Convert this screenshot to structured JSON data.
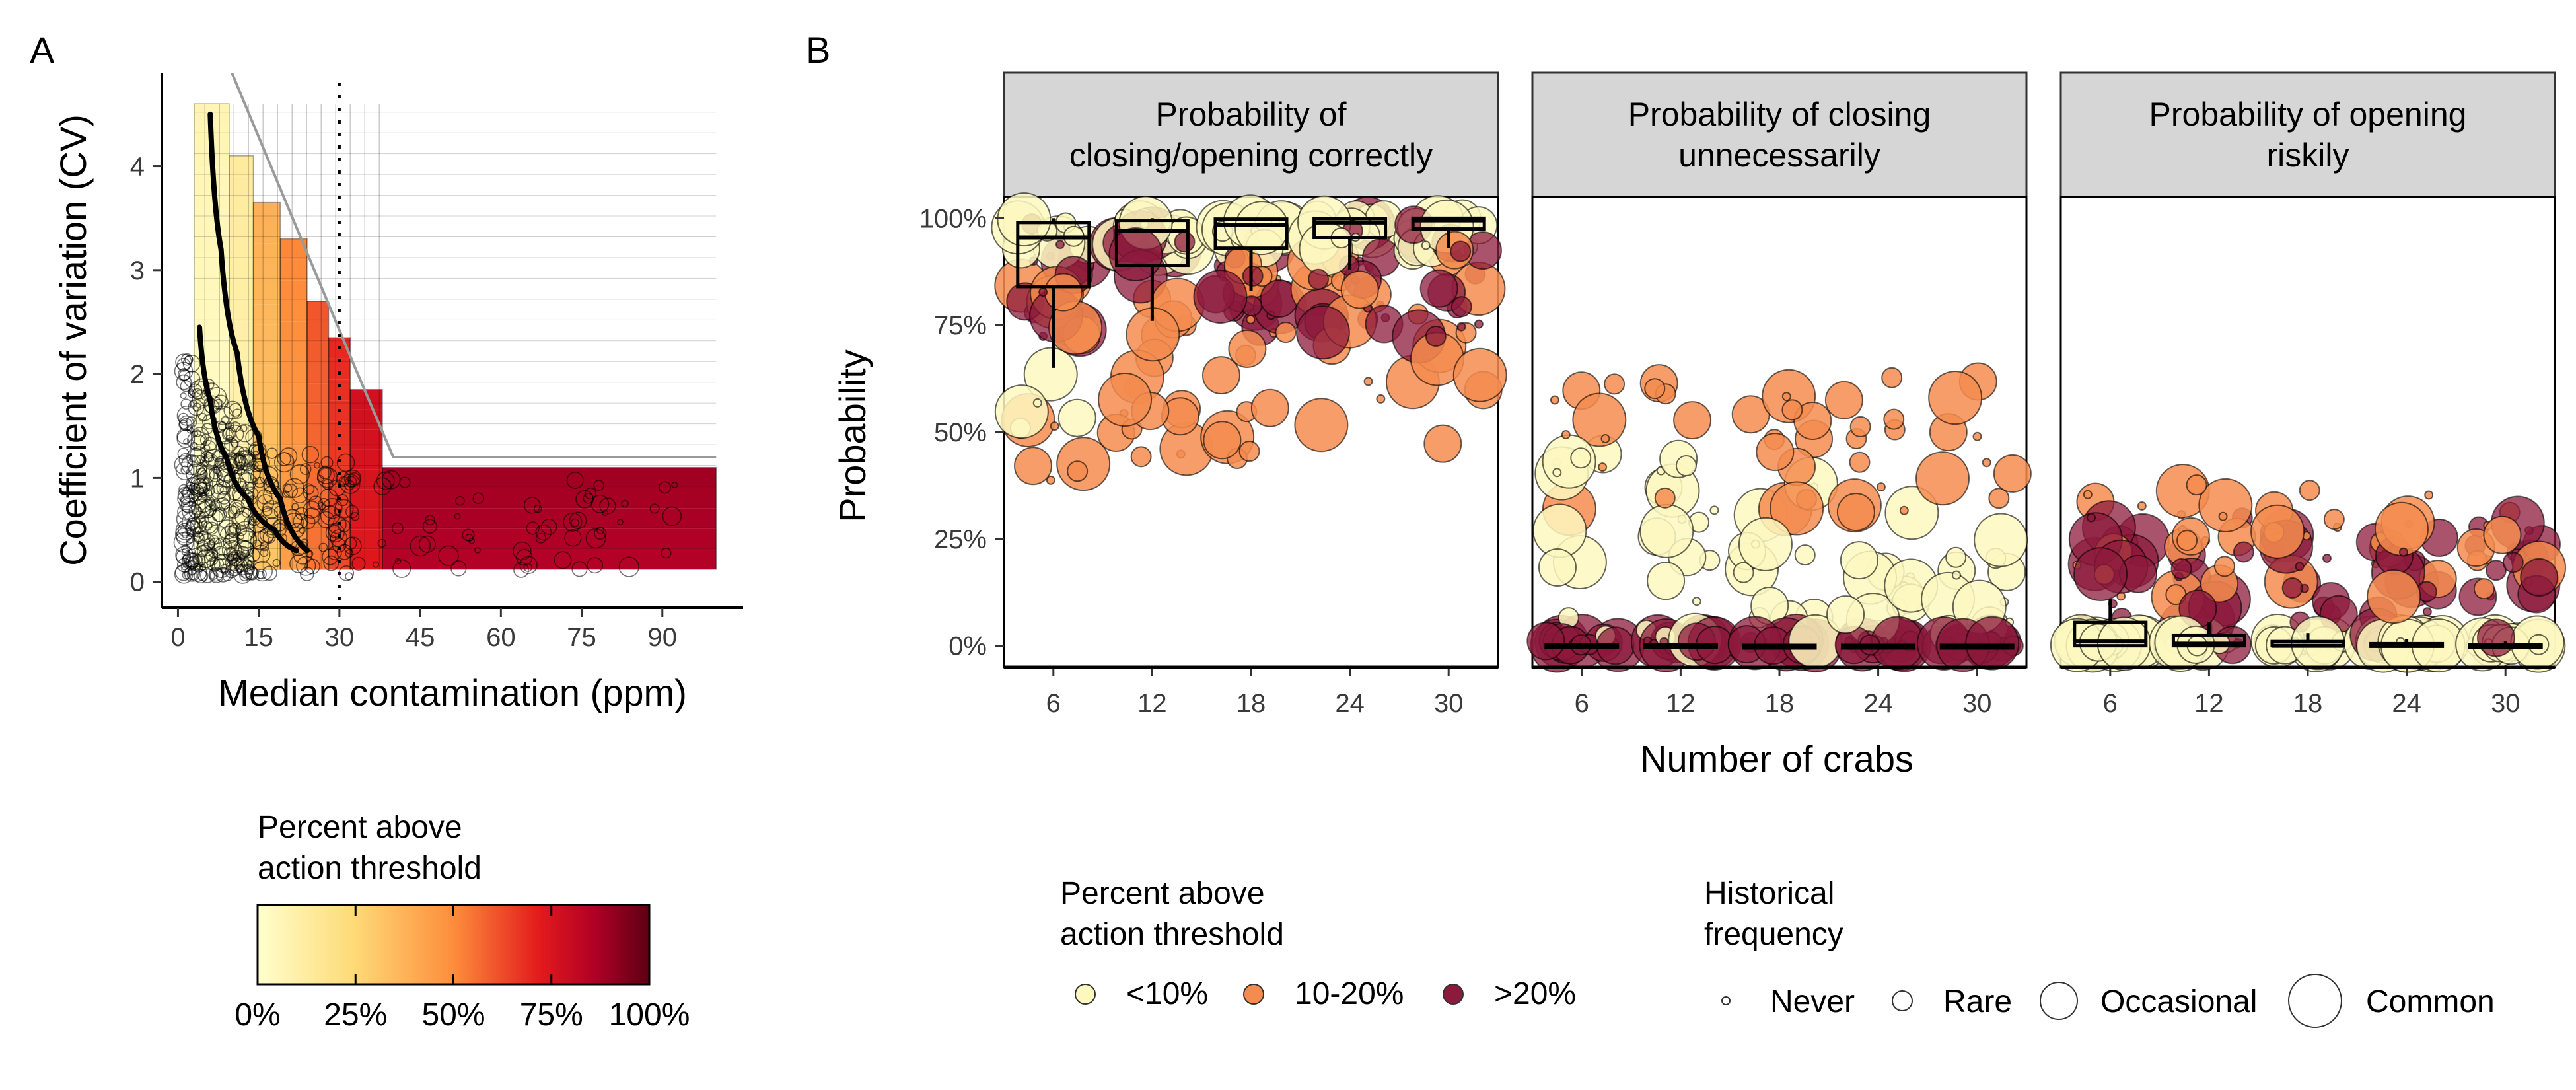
{
  "panel_labels": {
    "a": "A",
    "b": "B"
  },
  "chart_data": [
    {
      "type": "heatmap",
      "panel": "A",
      "xlabel": "Median contamination (ppm)",
      "ylabel": "Coefficient of variation (CV)",
      "xlim": [
        -3,
        105
      ],
      "ylim": [
        -0.25,
        4.9
      ],
      "xticks": [
        "0",
        "15",
        "30",
        "45",
        "60",
        "75",
        "90"
      ],
      "xtick_values": [
        0,
        15,
        30,
        45,
        60,
        75,
        90
      ],
      "yticks": [
        "0",
        "1",
        "2",
        "3",
        "4"
      ],
      "ytick_values": [
        0,
        1,
        2,
        3,
        4
      ],
      "threshold_line_x": 30,
      "heatmap_columns": [
        {
          "x0": 3,
          "x1": 9.5,
          "cv_max": 4.6,
          "percent_above": 3
        },
        {
          "x0": 9.5,
          "x1": 14,
          "cv_max": 4.1,
          "percent_above": 8
        },
        {
          "x0": 14,
          "x1": 19,
          "cv_max": 3.65,
          "percent_above": 28
        },
        {
          "x0": 19,
          "x1": 24,
          "cv_max": 3.3,
          "percent_above": 38
        },
        {
          "x0": 24,
          "x1": 28,
          "cv_max": 2.7,
          "percent_above": 47
        },
        {
          "x0": 28,
          "x1": 32,
          "cv_max": 2.35,
          "percent_above": 55
        },
        {
          "x0": 32,
          "x1": 38,
          "cv_max": 1.85,
          "percent_above": 65
        },
        {
          "x0": 38,
          "x1": 100,
          "cv_max": 1.1,
          "percent_above": 82
        }
      ],
      "envelope_line": [
        [
          10,
          4.9
        ],
        [
          33,
          2.05
        ],
        [
          40,
          1.2
        ],
        [
          100,
          1.2
        ]
      ],
      "bold_curves": [
        [
          [
            6,
            4.5
          ],
          [
            8,
            3.2
          ],
          [
            11,
            2.2
          ],
          [
            15,
            1.4
          ],
          [
            19,
            0.8
          ],
          [
            24,
            0.3
          ]
        ],
        [
          [
            4,
            2.45
          ],
          [
            6,
            1.75
          ],
          [
            9,
            1.2
          ],
          [
            13,
            0.8
          ],
          [
            18,
            0.5
          ],
          [
            22,
            0.3
          ]
        ]
      ]
    },
    {
      "type": "scatter",
      "panel": "B",
      "facets": [
        "Probability of\nclosing/opening correctly",
        "Probability of closing\nunnecessarily",
        "Probability of opening\nriskily"
      ],
      "categories": [
        "6",
        "12",
        "18",
        "24",
        "30"
      ],
      "xlabel": "Number of crabs",
      "ylabel": "Probability",
      "ylim": [
        -0.05,
        1.05
      ],
      "yticks": [
        "0%",
        "25%",
        "50%",
        "75%",
        "100%"
      ],
      "ytick_values": [
        0,
        0.25,
        0.5,
        0.75,
        1.0
      ],
      "boxplots": [
        [
          {
            "q1": 0.84,
            "median": 0.955,
            "q3": 0.99,
            "wlo": 0.65,
            "whi": 1.0
          },
          {
            "q1": 0.89,
            "median": 0.97,
            "q3": 0.995,
            "wlo": 0.76,
            "whi": 1.0
          },
          {
            "q1": 0.93,
            "median": 0.985,
            "q3": 0.998,
            "wlo": 0.83,
            "whi": 1.0
          },
          {
            "q1": 0.955,
            "median": 0.99,
            "q3": 0.999,
            "wlo": 0.88,
            "whi": 1.0
          },
          {
            "q1": 0.975,
            "median": 0.995,
            "q3": 1.0,
            "wlo": 0.93,
            "whi": 1.0
          }
        ],
        [
          {
            "q1": 0.0,
            "median": 0.0,
            "q3": 0.002,
            "wlo": 0.0,
            "whi": 0.004
          },
          {
            "q1": 0.0,
            "median": 0.0,
            "q3": 0.002,
            "wlo": 0.0,
            "whi": 0.003
          },
          {
            "q1": 0.0,
            "median": 0.0,
            "q3": 0.001,
            "wlo": 0.0,
            "whi": 0.002
          },
          {
            "q1": 0.0,
            "median": 0.0,
            "q3": 0.001,
            "wlo": 0.0,
            "whi": 0.002
          },
          {
            "q1": 0.0,
            "median": 0.0,
            "q3": 0.001,
            "wlo": 0.0,
            "whi": 0.001
          }
        ],
        [
          {
            "q1": 0.0,
            "median": 0.01,
            "q3": 0.055,
            "wlo": 0.0,
            "whi": 0.11
          },
          {
            "q1": 0.0,
            "median": 0.005,
            "q3": 0.025,
            "wlo": 0.0,
            "whi": 0.055
          },
          {
            "q1": 0.0,
            "median": 0.0,
            "q3": 0.01,
            "wlo": 0.0,
            "whi": 0.03
          },
          {
            "q1": 0.0,
            "median": 0.0,
            "q3": 0.005,
            "wlo": 0.0,
            "whi": 0.015
          },
          {
            "q1": 0.0,
            "median": 0.0,
            "q3": 0.003,
            "wlo": 0.0,
            "whi": 0.01
          }
        ]
      ]
    }
  ],
  "legend_heatmap": {
    "title_line1": "Percent above",
    "title_line2": "action threshold",
    "ticks": [
      "0%",
      "25%",
      "50%",
      "75%",
      "100%"
    ]
  },
  "legend_points": {
    "title_line1": "Percent above",
    "title_line2": "action threshold",
    "items": [
      {
        "label": "<10%",
        "color": "#fdf8c0"
      },
      {
        "label": "10-20%",
        "color": "#f58c4f"
      },
      {
        "label": ">20%",
        "color": "#8c1a3c"
      }
    ]
  },
  "legend_size": {
    "title_line1": "Historical",
    "title_line2": "frequency",
    "items": [
      "Never",
      "Rare",
      "Occasional",
      "Common"
    ]
  },
  "colors": {
    "low": "#fdf8c0",
    "mid": "#f58c4f",
    "high": "#8c1a3c",
    "strip_bg": "#d6d6d6",
    "heat_gradient": [
      "#ffffcc",
      "#fed976",
      "#fd8d3c",
      "#e31a1c",
      "#b10026",
      "#5c0012"
    ]
  }
}
